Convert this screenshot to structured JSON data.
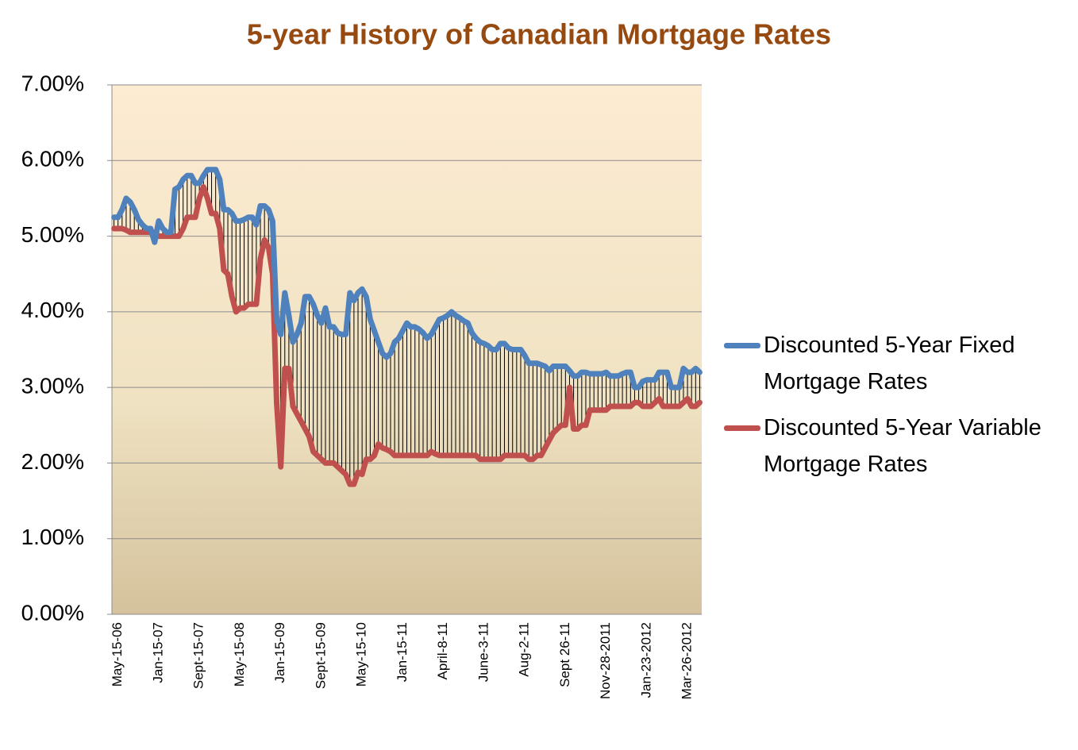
{
  "chart_data": {
    "type": "line",
    "title": "5-year History of Canadian Mortgage Rates",
    "categories": [
      null,
      "May-15-06",
      null,
      null,
      null,
      null,
      null,
      null,
      null,
      null,
      null,
      "Jan-15-07",
      null,
      null,
      null,
      null,
      null,
      null,
      null,
      null,
      null,
      "Sept-15-07",
      null,
      null,
      null,
      null,
      null,
      null,
      null,
      null,
      null,
      "May-15-08",
      null,
      null,
      null,
      null,
      null,
      null,
      null,
      null,
      null,
      "Jan-15-09",
      null,
      null,
      null,
      null,
      null,
      null,
      null,
      null,
      null,
      "Sept-15-09",
      null,
      null,
      null,
      null,
      null,
      null,
      null,
      null,
      null,
      "May-15-10",
      null,
      null,
      null,
      null,
      null,
      null,
      null,
      null,
      null,
      "Jan-15-11",
      null,
      null,
      null,
      null,
      null,
      null,
      null,
      null,
      null,
      "April-8-11",
      null,
      null,
      null,
      null,
      null,
      null,
      null,
      null,
      null,
      "June-3-11",
      null,
      null,
      null,
      null,
      null,
      null,
      null,
      null,
      null,
      "Aug-2-11",
      null,
      null,
      null,
      null,
      null,
      null,
      null,
      null,
      null,
      "Sept 26-11",
      null,
      null,
      null,
      null,
      null,
      null,
      null,
      null,
      null,
      "Nov-28-2011",
      null,
      null,
      null,
      null,
      null,
      null,
      null,
      null,
      null,
      "Jan-23-2012",
      null,
      null,
      null,
      null,
      null,
      null,
      null,
      null,
      null,
      "Mar-26-2012",
      null,
      null,
      null
    ],
    "series": [
      {
        "name": "Discounted 5-Year Fixed Mortgage Rates",
        "color": "#4f81bd",
        "values": [
          5.25,
          5.25,
          5.35,
          5.5,
          5.45,
          5.35,
          5.22,
          5.15,
          5.1,
          5.1,
          4.92,
          5.2,
          5.1,
          5.05,
          5.05,
          5.62,
          5.65,
          5.75,
          5.8,
          5.8,
          5.7,
          5.7,
          5.8,
          5.88,
          5.88,
          5.88,
          5.75,
          5.35,
          5.35,
          5.3,
          5.2,
          5.2,
          5.22,
          5.25,
          5.25,
          5.15,
          5.4,
          5.4,
          5.35,
          5.2,
          3.9,
          3.7,
          4.25,
          3.95,
          3.6,
          3.7,
          3.85,
          4.2,
          4.2,
          4.1,
          3.95,
          3.85,
          4.05,
          3.8,
          3.8,
          3.72,
          3.7,
          3.7,
          4.25,
          4.15,
          4.25,
          4.3,
          4.2,
          3.9,
          3.75,
          3.6,
          3.45,
          3.4,
          3.45,
          3.6,
          3.65,
          3.75,
          3.85,
          3.8,
          3.8,
          3.77,
          3.72,
          3.65,
          3.7,
          3.8,
          3.9,
          3.92,
          3.95,
          4.0,
          3.95,
          3.92,
          3.88,
          3.85,
          3.72,
          3.65,
          3.6,
          3.58,
          3.55,
          3.5,
          3.5,
          3.58,
          3.58,
          3.52,
          3.5,
          3.5,
          3.5,
          3.42,
          3.32,
          3.32,
          3.32,
          3.3,
          3.28,
          3.22,
          3.28,
          3.28,
          3.28,
          3.28,
          3.22,
          3.15,
          3.15,
          3.2,
          3.2,
          3.18,
          3.18,
          3.18,
          3.18,
          3.2,
          3.15,
          3.15,
          3.15,
          3.18,
          3.2,
          3.2,
          3.0,
          3.0,
          3.08,
          3.1,
          3.1,
          3.1,
          3.2,
          3.2,
          3.2,
          3.0,
          3.0,
          3.0,
          3.25,
          3.2,
          3.2,
          3.25,
          3.2
        ]
      },
      {
        "name": "Discounted 5-Year Variable Mortgage Rates",
        "color": "#c0504d",
        "values": [
          5.1,
          5.1,
          5.1,
          5.08,
          5.05,
          5.05,
          5.05,
          5.05,
          5.05,
          5.05,
          5.05,
          5.0,
          5.0,
          5.0,
          5.0,
          5.0,
          5.0,
          5.1,
          5.25,
          5.25,
          5.25,
          5.5,
          5.65,
          5.5,
          5.3,
          5.3,
          5.1,
          4.55,
          4.5,
          4.2,
          4.0,
          4.05,
          4.05,
          4.1,
          4.1,
          4.1,
          4.7,
          4.95,
          4.85,
          4.5,
          2.8,
          1.95,
          3.25,
          3.25,
          2.75,
          2.65,
          2.55,
          2.45,
          2.35,
          2.15,
          2.1,
          2.05,
          2.0,
          2.0,
          2.0,
          1.95,
          1.9,
          1.85,
          1.72,
          1.72,
          1.88,
          1.85,
          2.05,
          2.05,
          2.1,
          2.25,
          2.2,
          2.18,
          2.15,
          2.1,
          2.1,
          2.1,
          2.1,
          2.1,
          2.1,
          2.1,
          2.1,
          2.1,
          2.15,
          2.12,
          2.1,
          2.1,
          2.1,
          2.1,
          2.1,
          2.1,
          2.1,
          2.1,
          2.1,
          2.1,
          2.05,
          2.05,
          2.05,
          2.05,
          2.05,
          2.05,
          2.1,
          2.1,
          2.1,
          2.1,
          2.1,
          2.1,
          2.05,
          2.05,
          2.1,
          2.1,
          2.2,
          2.3,
          2.4,
          2.45,
          2.5,
          2.5,
          3.0,
          2.45,
          2.45,
          2.5,
          2.5,
          2.7,
          2.7,
          2.7,
          2.7,
          2.7,
          2.75,
          2.75,
          2.75,
          2.75,
          2.75,
          2.75,
          2.8,
          2.8,
          2.75,
          2.75,
          2.75,
          2.8,
          2.85,
          2.75,
          2.75,
          2.75,
          2.75,
          2.75,
          2.8,
          2.85,
          2.75,
          2.75,
          2.8
        ]
      }
    ],
    "ylim": [
      0,
      7
    ],
    "yticks": [
      {
        "value": 0,
        "label": "0.00%"
      },
      {
        "value": 1,
        "label": "1.00%"
      },
      {
        "value": 2,
        "label": "2.00%"
      },
      {
        "value": 3,
        "label": "3.00%"
      },
      {
        "value": 4,
        "label": "4.00%"
      },
      {
        "value": 5,
        "label": "5.00%"
      },
      {
        "value": 6,
        "label": "6.00%"
      },
      {
        "value": 7,
        "label": "7.00%"
      }
    ],
    "grid": true,
    "drop_lines": true,
    "legend": "right"
  }
}
